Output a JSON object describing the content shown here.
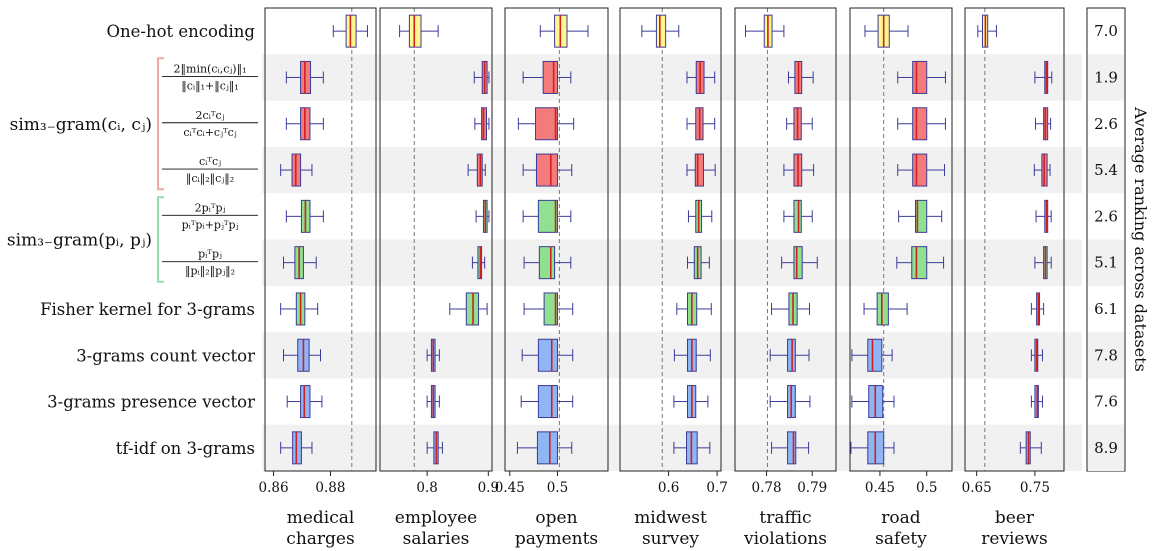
{
  "colors": {
    "yellow": "#fff68f",
    "red": "#f47b7b",
    "green": "#8fe08f",
    "blue": "#8fb5f5",
    "whisker": "#3b3b9a",
    "median": "#cc2222",
    "band": "#f1f1f1",
    "bracket_red": "#f4a6a0",
    "bracket_green": "#8fe0a6"
  },
  "row_labels": [
    {
      "text": "One-hot encoding",
      "kind": "plain"
    },
    {
      "kind": "frac",
      "num": "2‖min(cᵢ,cⱼ)‖₁",
      "den": "‖cᵢ‖₁+‖cⱼ‖₁"
    },
    {
      "kind": "frac",
      "num": "2cᵢᵀcⱼ",
      "den": "cᵢᵀcᵢ+cⱼᵀcⱼ"
    },
    {
      "kind": "frac",
      "num": "cᵢᵀcⱼ",
      "den": "‖cᵢ‖₂‖cⱼ‖₂"
    },
    {
      "kind": "frac",
      "num": "2pᵢᵀpⱼ",
      "den": "pᵢᵀpᵢ+pⱼᵀpⱼ"
    },
    {
      "kind": "frac",
      "num": "pᵢᵀpⱼ",
      "den": "‖pᵢ‖₂‖pⱼ‖₂"
    },
    {
      "text": "Fisher kernel for 3-grams",
      "kind": "plain"
    },
    {
      "text": "3-grams count vector",
      "kind": "plain"
    },
    {
      "text": "3-grams presence vector",
      "kind": "plain"
    },
    {
      "text": "tf-idf on 3-grams",
      "kind": "plain"
    }
  ],
  "groups": [
    {
      "label": "sim₃₋gram(cᵢ, cⱼ)",
      "rows": [
        1,
        3
      ],
      "color": "#f4a6a0"
    },
    {
      "label": "sim₃₋gram(pᵢ, pⱼ)",
      "rows": [
        4,
        5
      ],
      "color": "#8fe0a6"
    }
  ],
  "row_colors": [
    "yellow",
    "red",
    "red",
    "red",
    "green",
    "green",
    "green",
    "blue",
    "blue",
    "blue"
  ],
  "average_rank_label": "Average ranking across datasets",
  "average_ranks": [
    "7.0",
    "1.9",
    "2.6",
    "5.4",
    "2.6",
    "5.1",
    "6.1",
    "7.8",
    "7.6",
    "8.9"
  ],
  "chart_data": {
    "type": "boxplot",
    "rows": [
      "One-hot encoding",
      "sim 3-gram (c) min/l1",
      "sim 3-gram (c) dice",
      "sim 3-gram (c) cosine",
      "sim 3-gram (p) dice",
      "sim 3-gram (p) cosine",
      "Fisher kernel for 3-grams",
      "3-grams count vector",
      "3-grams presence vector",
      "tf-idf on 3-grams"
    ],
    "panels": [
      {
        "title": [
          "medical",
          "charges"
        ],
        "ticks": [
          0.86,
          0.88
        ],
        "tick_labels": [
          "0.86",
          "0.88"
        ],
        "xlim": [
          0.857,
          0.896
        ],
        "ref": 0.8875,
        "boxes": [
          [
            0.881,
            0.8855,
            0.887,
            0.889,
            0.893
          ],
          [
            0.8645,
            0.8695,
            0.871,
            0.873,
            0.8775
          ],
          [
            0.8645,
            0.8695,
            0.871,
            0.8728,
            0.8775
          ],
          [
            0.8625,
            0.8665,
            0.8678,
            0.8695,
            0.8735
          ],
          [
            0.8645,
            0.8698,
            0.8712,
            0.8728,
            0.8775
          ],
          [
            0.8635,
            0.8675,
            0.869,
            0.8705,
            0.875
          ],
          [
            0.8625,
            0.868,
            0.8695,
            0.871,
            0.8755
          ],
          [
            0.8635,
            0.8685,
            0.8705,
            0.8725,
            0.8765
          ],
          [
            0.8648,
            0.8695,
            0.8708,
            0.8728,
            0.877
          ],
          [
            0.8625,
            0.8667,
            0.868,
            0.8698,
            0.8735
          ]
        ]
      },
      {
        "title": [
          "employee",
          "salaries"
        ],
        "ticks": [
          0.8,
          0.9
        ],
        "tick_labels": [
          "0.8",
          "0.9"
        ],
        "xlim": [
          0.723,
          0.906
        ],
        "ref": 0.779,
        "boxes": [
          [
            0.755,
            0.771,
            0.779,
            0.79,
            0.818
          ],
          [
            0.877,
            0.89,
            0.894,
            0.898,
            0.901
          ],
          [
            0.878,
            0.889,
            0.892,
            0.897,
            0.901
          ],
          [
            0.867,
            0.882,
            0.887,
            0.89,
            0.895
          ],
          [
            0.88,
            0.892,
            0.895,
            0.898,
            0.901
          ],
          [
            0.874,
            0.883,
            0.887,
            0.889,
            0.894
          ],
          [
            0.837,
            0.864,
            0.875,
            0.884,
            0.898
          ],
          [
            0.8,
            0.807,
            0.81,
            0.813,
            0.82
          ],
          [
            0.8,
            0.807,
            0.81,
            0.813,
            0.82
          ],
          [
            0.8,
            0.811,
            0.815,
            0.818,
            0.825
          ]
        ]
      },
      {
        "title": [
          "open",
          "payments"
        ],
        "ticks": [
          0.45,
          0.5
        ],
        "tick_labels": [
          "0.45",
          "0.5"
        ],
        "xlim": [
          0.445,
          0.553
        ],
        "ref": 0.502,
        "boxes": [
          [
            0.482,
            0.497,
            0.503,
            0.51,
            0.532
          ],
          [
            0.464,
            0.485,
            0.496,
            0.5,
            0.514
          ],
          [
            0.459,
            0.477,
            0.498,
            0.5,
            0.517
          ],
          [
            0.464,
            0.478,
            0.493,
            0.5,
            0.515
          ],
          [
            0.464,
            0.48,
            0.498,
            0.5,
            0.514
          ],
          [
            0.465,
            0.481,
            0.493,
            0.497,
            0.514
          ],
          [
            0.465,
            0.486,
            0.498,
            0.5,
            0.516
          ],
          [
            0.463,
            0.48,
            0.494,
            0.5,
            0.516
          ],
          [
            0.462,
            0.48,
            0.494,
            0.5,
            0.516
          ],
          [
            0.458,
            0.479,
            0.492,
            0.5,
            0.515
          ]
        ]
      },
      {
        "title": [
          "midwest",
          "survey"
        ],
        "ticks": [
          0.6,
          0.7
        ],
        "tick_labels": [
          "0.6",
          "0.7"
        ],
        "xlim": [
          0.5,
          0.708
        ],
        "ref": 0.587,
        "boxes": [
          [
            0.545,
            0.575,
            0.582,
            0.594,
            0.621
          ],
          [
            0.638,
            0.657,
            0.665,
            0.673,
            0.695
          ],
          [
            0.638,
            0.656,
            0.664,
            0.671,
            0.695
          ],
          [
            0.638,
            0.655,
            0.66,
            0.672,
            0.696
          ],
          [
            0.641,
            0.656,
            0.662,
            0.668,
            0.689
          ],
          [
            0.639,
            0.653,
            0.66,
            0.667,
            0.684
          ],
          [
            0.617,
            0.639,
            0.648,
            0.658,
            0.688
          ],
          [
            0.612,
            0.639,
            0.648,
            0.657,
            0.686
          ],
          [
            0.611,
            0.639,
            0.648,
            0.656,
            0.681
          ],
          [
            0.611,
            0.637,
            0.647,
            0.659,
            0.685
          ]
        ]
      },
      {
        "title": [
          "traffic",
          "violations"
        ],
        "ticks": [
          0.78,
          0.79
        ],
        "tick_labels": [
          "0.78",
          "0.79"
        ],
        "xlim": [
          0.7731,
          0.7952
        ],
        "ref": 0.7802,
        "boxes": [
          [
            0.7754,
            0.7795,
            0.7803,
            0.7812,
            0.7838
          ],
          [
            0.7848,
            0.7862,
            0.787,
            0.7877,
            0.7902
          ],
          [
            0.7844,
            0.786,
            0.7868,
            0.7876,
            0.79
          ],
          [
            0.7838,
            0.786,
            0.7869,
            0.7877,
            0.7903
          ],
          [
            0.7838,
            0.786,
            0.787,
            0.7876,
            0.79
          ],
          [
            0.7833,
            0.786,
            0.7866,
            0.7878,
            0.7911
          ],
          [
            0.7811,
            0.7849,
            0.7858,
            0.7867,
            0.7894
          ],
          [
            0.7808,
            0.7846,
            0.7856,
            0.7863,
            0.7893
          ],
          [
            0.7808,
            0.7846,
            0.7854,
            0.7863,
            0.7895
          ],
          [
            0.7811,
            0.7846,
            0.7859,
            0.7864,
            0.7892
          ]
        ]
      },
      {
        "title": [
          "road",
          "safety"
        ],
        "ticks": [
          0.45,
          0.5
        ],
        "tick_labels": [
          "0.45",
          "0.5"
        ],
        "xlim": [
          0.418,
          0.527
        ],
        "ref": 0.454,
        "boxes": [
          [
            0.434,
            0.448,
            0.454,
            0.46,
            0.48
          ],
          [
            0.469,
            0.485,
            0.489,
            0.5,
            0.52
          ],
          [
            0.469,
            0.485,
            0.489,
            0.5,
            0.52
          ],
          [
            0.469,
            0.485,
            0.489,
            0.5,
            0.519
          ],
          [
            0.47,
            0.488,
            0.49,
            0.5,
            0.516
          ],
          [
            0.468,
            0.484,
            0.489,
            0.5,
            0.518
          ],
          [
            0.433,
            0.447,
            0.452,
            0.459,
            0.479
          ],
          [
            0.42,
            0.437,
            0.442,
            0.452,
            0.463
          ],
          [
            0.42,
            0.438,
            0.445,
            0.453,
            0.465
          ],
          [
            0.419,
            0.437,
            0.445,
            0.454,
            0.465
          ]
        ]
      },
      {
        "title": [
          "beer",
          "reviews"
        ],
        "ticks": [
          0.65,
          0.75
        ],
        "tick_labels": [
          "0.65",
          "0.75"
        ],
        "xlim": [
          0.63,
          0.8
        ],
        "ref": 0.664,
        "boxes": [
          [
            0.652,
            0.66,
            0.665,
            0.669,
            0.684
          ],
          [
            0.75,
            0.767,
            0.77,
            0.772,
            0.779
          ],
          [
            0.751,
            0.765,
            0.768,
            0.772,
            0.777
          ],
          [
            0.749,
            0.762,
            0.766,
            0.771,
            0.776
          ],
          [
            0.752,
            0.767,
            0.77,
            0.772,
            0.778
          ],
          [
            0.75,
            0.765,
            0.768,
            0.771,
            0.778
          ],
          [
            0.744,
            0.753,
            0.756,
            0.758,
            0.765
          ],
          [
            0.744,
            0.75,
            0.753,
            0.755,
            0.763
          ],
          [
            0.744,
            0.75,
            0.754,
            0.756,
            0.763
          ],
          [
            0.725,
            0.735,
            0.739,
            0.742,
            0.761
          ]
        ]
      }
    ]
  }
}
